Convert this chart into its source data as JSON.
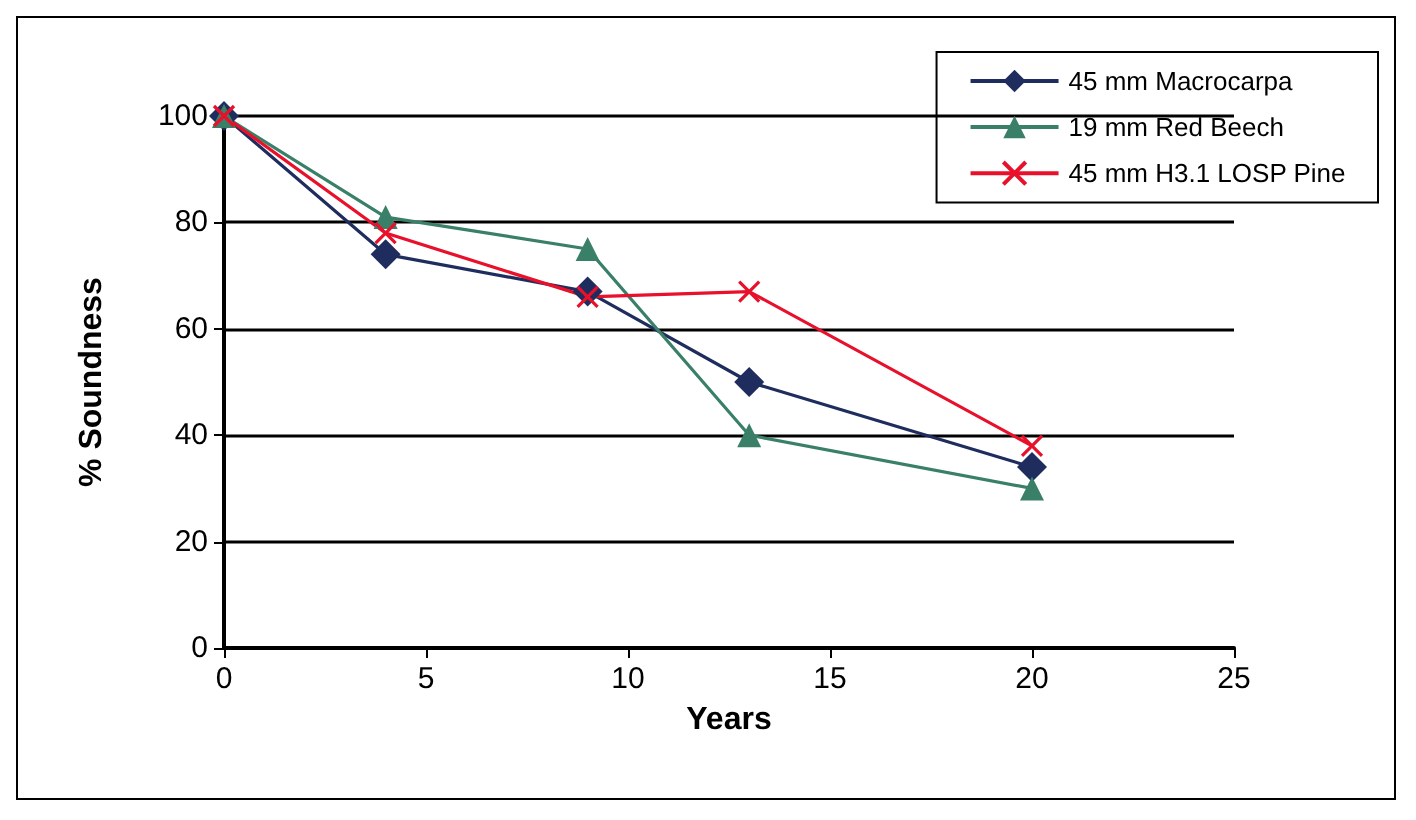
{
  "chart_data": {
    "type": "line",
    "xlabel": "Years",
    "ylabel": "% Soundness",
    "x": [
      0,
      4,
      9,
      13,
      20
    ],
    "series": [
      {
        "name": "45 mm Macrocarpa",
        "color": "#1f2d5e",
        "marker": "diamond",
        "values": [
          100,
          74,
          67,
          50,
          34
        ]
      },
      {
        "name": "19 mm Red Beech",
        "color": "#3a8068",
        "marker": "triangle",
        "values": [
          100,
          81,
          75,
          40,
          30
        ]
      },
      {
        "name": "45 mm H3.1 LOSP Pine",
        "color": "#e8102a",
        "marker": "cross",
        "values": [
          100,
          78,
          66,
          67,
          38
        ]
      }
    ],
    "xlim": [
      0,
      25
    ],
    "xticks": [
      0,
      5,
      10,
      15,
      20,
      25
    ],
    "ylim": [
      0,
      100
    ],
    "yticks": [
      0,
      20,
      40,
      60,
      80,
      100
    ],
    "grid": "y",
    "legend": "top right",
    "line_style": "solid"
  }
}
